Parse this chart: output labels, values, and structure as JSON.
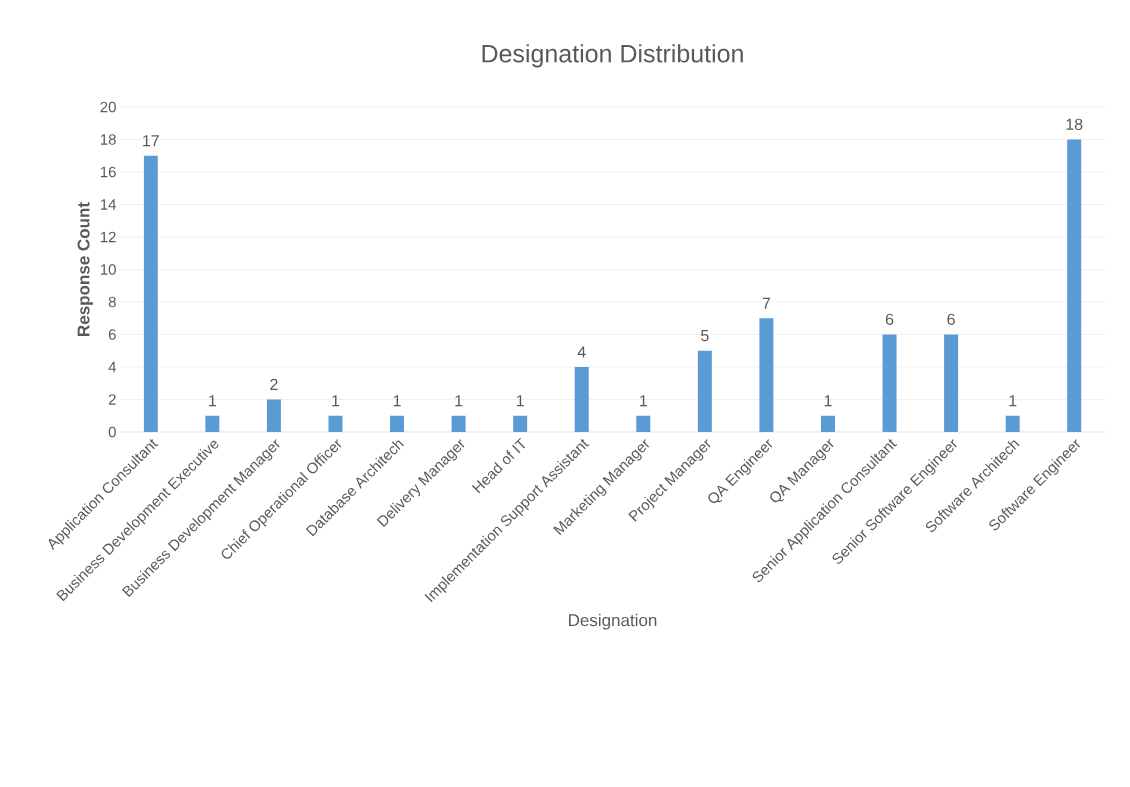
{
  "chart_data": {
    "type": "bar",
    "title": "Designation Distribution",
    "xlabel": "Designation",
    "ylabel": "Response Count",
    "categories": [
      "Application Consultant",
      "Business Development Executive",
      "Business Development Manager",
      "Chief Operational Officer",
      "Database Architech",
      "Delivery Manager",
      "Head of IT",
      "Implementation Support Assistant",
      "Marketing Manager",
      "Project Manager",
      "QA Engineer",
      "QA Manager",
      "Senior Application Consultant",
      "Senior Software Engineer",
      "Software Architech",
      "Software Engineer"
    ],
    "values": [
      17,
      1,
      2,
      1,
      1,
      1,
      1,
      4,
      1,
      5,
      7,
      1,
      6,
      6,
      1,
      18
    ],
    "color": "#5b9bd5",
    "ylim": [
      0,
      20
    ],
    "yticks": [
      0,
      2,
      4,
      6,
      8,
      10,
      12,
      14,
      16,
      18,
      20
    ],
    "grid": "y",
    "data_labels": true
  }
}
